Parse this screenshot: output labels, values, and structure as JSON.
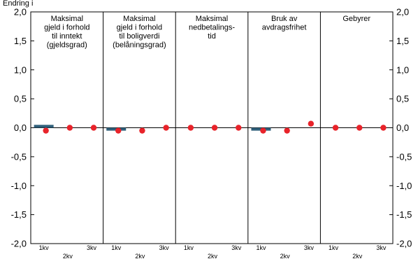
{
  "chart_data": {
    "type": "bar",
    "subtitle": "Endring i",
    "ylim": [
      -2.0,
      2.0
    ],
    "yticks": [
      "2,0",
      "1,5",
      "1,0",
      "0,5",
      "0,0",
      "-0,5",
      "-1,0",
      "-1,5",
      "-2,0"
    ],
    "grid": false,
    "legend": "none",
    "colors": {
      "bar": "#2f5f7a",
      "dot": "#e8232a"
    },
    "panels": [
      {
        "title": [
          "Maksimal",
          "gjeld i forhold",
          "til inntekt",
          "(gjeldsgrad)"
        ],
        "quarters": [
          "1kv",
          "2kv",
          "3kv"
        ],
        "bars": [
          0.05,
          0.0,
          0.0
        ],
        "dots": [
          -0.05,
          0.0,
          0.0
        ]
      },
      {
        "title": [
          "Maksimal",
          "gjeld i forhold",
          "til boligverdi",
          "(belåningsgrad)"
        ],
        "quarters": [
          "1kv",
          "2kv",
          "3kv"
        ],
        "bars": [
          -0.05,
          0.0,
          0.0
        ],
        "dots": [
          -0.05,
          -0.05,
          0.0
        ]
      },
      {
        "title": [
          "Maksimal",
          "nedbetalings-",
          "tid"
        ],
        "quarters": [
          "1kv",
          "2kv",
          "3kv"
        ],
        "bars": [
          0.0,
          0.0,
          0.0
        ],
        "dots": [
          0.0,
          0.0,
          0.0
        ]
      },
      {
        "title": [
          "Bruk av",
          "avdragsfrihet"
        ],
        "quarters": [
          "1kv",
          "2kv",
          "3kv"
        ],
        "bars": [
          -0.05,
          0.0,
          0.0
        ],
        "dots": [
          -0.05,
          -0.05,
          0.07
        ]
      },
      {
        "title": [
          "Gebyrer"
        ],
        "quarters": [
          "1kv",
          "2kv",
          "3kv"
        ],
        "bars": [
          0.0,
          0.0,
          0.0
        ],
        "dots": [
          0.0,
          0.0,
          0.0
        ]
      }
    ]
  }
}
